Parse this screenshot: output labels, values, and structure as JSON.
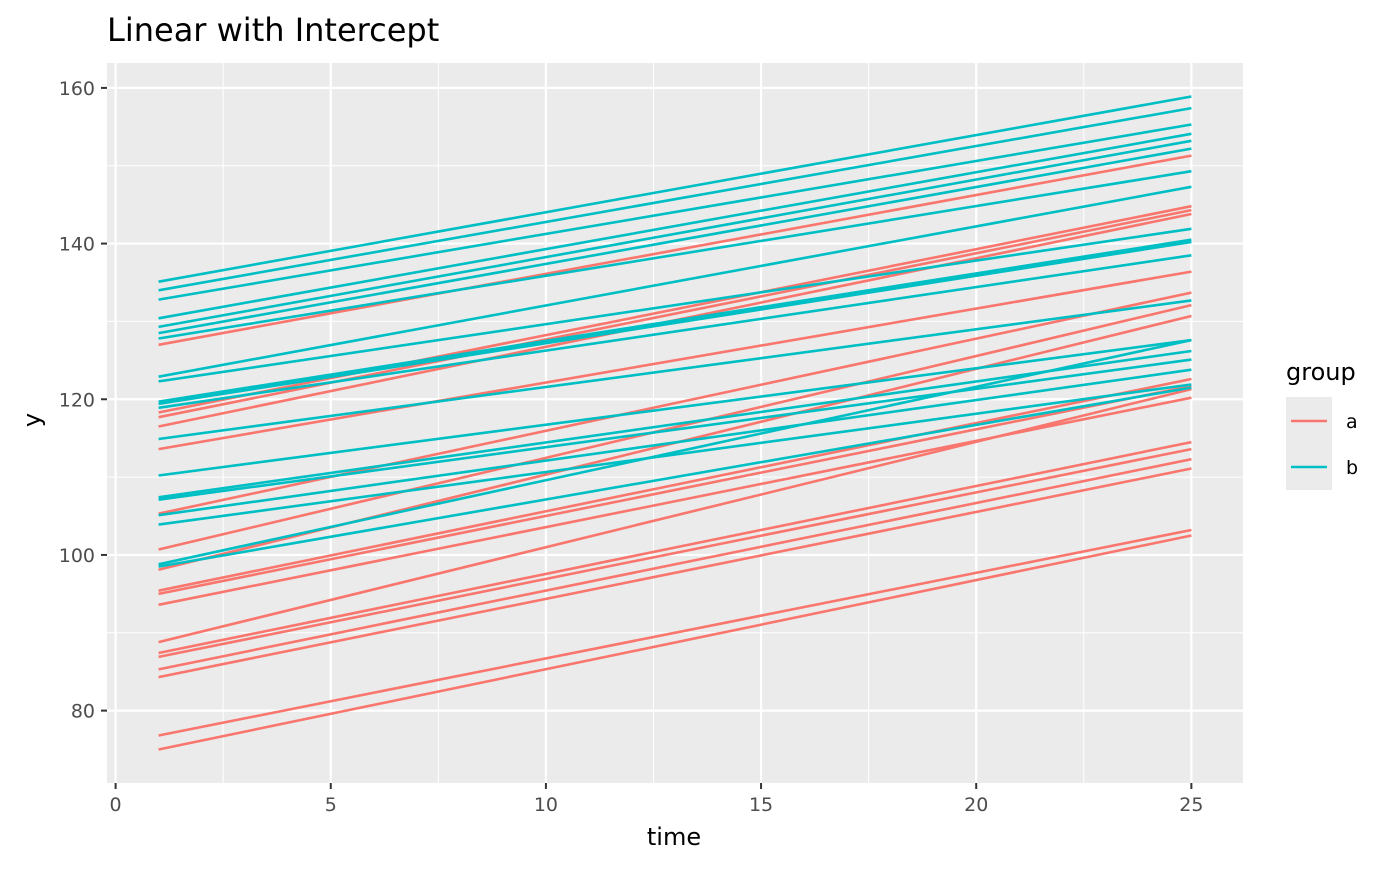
{
  "chart_data": {
    "type": "line",
    "title": "Linear with Intercept",
    "xlabel": "time",
    "ylabel": "y",
    "xlim": [
      -0.2,
      26.2
    ],
    "ylim": [
      70.7,
      163.2
    ],
    "xticks": [
      0,
      5,
      10,
      15,
      20,
      25
    ],
    "yticks": [
      80,
      100,
      120,
      140,
      160
    ],
    "xtick_labels": [
      "0",
      "5",
      "10",
      "15",
      "20",
      "25"
    ],
    "ytick_labels": [
      "80",
      "100",
      "120",
      "140",
      "160"
    ],
    "grid": true,
    "legend": {
      "title": "group",
      "position": "right",
      "entries": [
        {
          "label": "a",
          "color": "#F8766D"
        },
        {
          "label": "b",
          "color": "#00BFC4"
        }
      ]
    },
    "series": [
      {
        "group": "a",
        "color": "#F8766D",
        "x": [
          1,
          25
        ],
        "y": [
          127.0,
          151.3
        ]
      },
      {
        "group": "a",
        "color": "#F8766D",
        "x": [
          1,
          25
        ],
        "y": [
          118.3,
          144.8
        ]
      },
      {
        "group": "a",
        "color": "#F8766D",
        "x": [
          1,
          25
        ],
        "y": [
          117.7,
          144.3
        ]
      },
      {
        "group": "a",
        "color": "#F8766D",
        "x": [
          1,
          25
        ],
        "y": [
          116.5,
          143.8
        ]
      },
      {
        "group": "a",
        "color": "#F8766D",
        "x": [
          1,
          25
        ],
        "y": [
          113.6,
          136.4
        ]
      },
      {
        "group": "a",
        "color": "#F8766D",
        "x": [
          1,
          25
        ],
        "y": [
          105.3,
          133.7
        ]
      },
      {
        "group": "a",
        "color": "#F8766D",
        "x": [
          1,
          25
        ],
        "y": [
          100.7,
          132.1
        ]
      },
      {
        "group": "a",
        "color": "#F8766D",
        "x": [
          1,
          25
        ],
        "y": [
          98.1,
          130.7
        ]
      },
      {
        "group": "a",
        "color": "#F8766D",
        "x": [
          1,
          25
        ],
        "y": [
          95.4,
          122.6
        ]
      },
      {
        "group": "a",
        "color": "#F8766D",
        "x": [
          1,
          25
        ],
        "y": [
          95.0,
          121.7
        ]
      },
      {
        "group": "a",
        "color": "#F8766D",
        "x": [
          1,
          25
        ],
        "y": [
          93.6,
          120.2
        ]
      },
      {
        "group": "a",
        "color": "#F8766D",
        "x": [
          1,
          25
        ],
        "y": [
          88.8,
          121.3
        ]
      },
      {
        "group": "a",
        "color": "#F8766D",
        "x": [
          1,
          25
        ],
        "y": [
          87.4,
          114.5
        ]
      },
      {
        "group": "a",
        "color": "#F8766D",
        "x": [
          1,
          25
        ],
        "y": [
          86.9,
          113.6
        ]
      },
      {
        "group": "a",
        "color": "#F8766D",
        "x": [
          1,
          25
        ],
        "y": [
          85.3,
          112.3
        ]
      },
      {
        "group": "a",
        "color": "#F8766D",
        "x": [
          1,
          25
        ],
        "y": [
          84.3,
          111.1
        ]
      },
      {
        "group": "a",
        "color": "#F8766D",
        "x": [
          1,
          25
        ],
        "y": [
          76.8,
          103.2
        ]
      },
      {
        "group": "a",
        "color": "#F8766D",
        "x": [
          1,
          25
        ],
        "y": [
          75.0,
          102.5
        ]
      },
      {
        "group": "b",
        "color": "#00BFC4",
        "x": [
          1,
          25
        ],
        "y": [
          135.1,
          158.9
        ]
      },
      {
        "group": "b",
        "color": "#00BFC4",
        "x": [
          1,
          25
        ],
        "y": [
          134.0,
          157.4
        ]
      },
      {
        "group": "b",
        "color": "#00BFC4",
        "x": [
          1,
          25
        ],
        "y": [
          132.8,
          155.3
        ]
      },
      {
        "group": "b",
        "color": "#00BFC4",
        "x": [
          1,
          25
        ],
        "y": [
          130.4,
          154.1
        ]
      },
      {
        "group": "b",
        "color": "#00BFC4",
        "x": [
          1,
          25
        ],
        "y": [
          129.3,
          153.2
        ]
      },
      {
        "group": "b",
        "color": "#00BFC4",
        "x": [
          1,
          25
        ],
        "y": [
          128.5,
          152.2
        ]
      },
      {
        "group": "b",
        "color": "#00BFC4",
        "x": [
          1,
          25
        ],
        "y": [
          127.8,
          149.3
        ]
      },
      {
        "group": "b",
        "color": "#00BFC4",
        "x": [
          1,
          25
        ],
        "y": [
          122.9,
          147.3
        ]
      },
      {
        "group": "b",
        "color": "#00BFC4",
        "x": [
          1,
          25
        ],
        "y": [
          122.3,
          141.9
        ]
      },
      {
        "group": "b",
        "color": "#00BFC4",
        "x": [
          1,
          25
        ],
        "y": [
          119.7,
          140.5
        ]
      },
      {
        "group": "b",
        "color": "#00BFC4",
        "x": [
          1,
          25
        ],
        "y": [
          119.4,
          140.2
        ]
      },
      {
        "group": "b",
        "color": "#00BFC4",
        "x": [
          1,
          25
        ],
        "y": [
          118.9,
          138.5
        ]
      },
      {
        "group": "b",
        "color": "#00BFC4",
        "x": [
          1,
          25
        ],
        "y": [
          114.9,
          132.7
        ]
      },
      {
        "group": "b",
        "color": "#00BFC4",
        "x": [
          1,
          25
        ],
        "y": [
          110.2,
          127.6
        ]
      },
      {
        "group": "b",
        "color": "#00BFC4",
        "x": [
          1,
          25
        ],
        "y": [
          107.4,
          126.2
        ]
      },
      {
        "group": "b",
        "color": "#00BFC4",
        "x": [
          1,
          25
        ],
        "y": [
          107.1,
          125.1
        ]
      },
      {
        "group": "b",
        "color": "#00BFC4",
        "x": [
          1,
          25
        ],
        "y": [
          105.1,
          123.8
        ]
      },
      {
        "group": "b",
        "color": "#00BFC4",
        "x": [
          1,
          25
        ],
        "y": [
          103.9,
          121.9
        ]
      },
      {
        "group": "b",
        "color": "#00BFC4",
        "x": [
          1,
          25
        ],
        "y": [
          98.8,
          127.6
        ]
      },
      {
        "group": "b",
        "color": "#00BFC4",
        "x": [
          1,
          25
        ],
        "y": [
          98.5,
          121.5
        ]
      }
    ]
  }
}
